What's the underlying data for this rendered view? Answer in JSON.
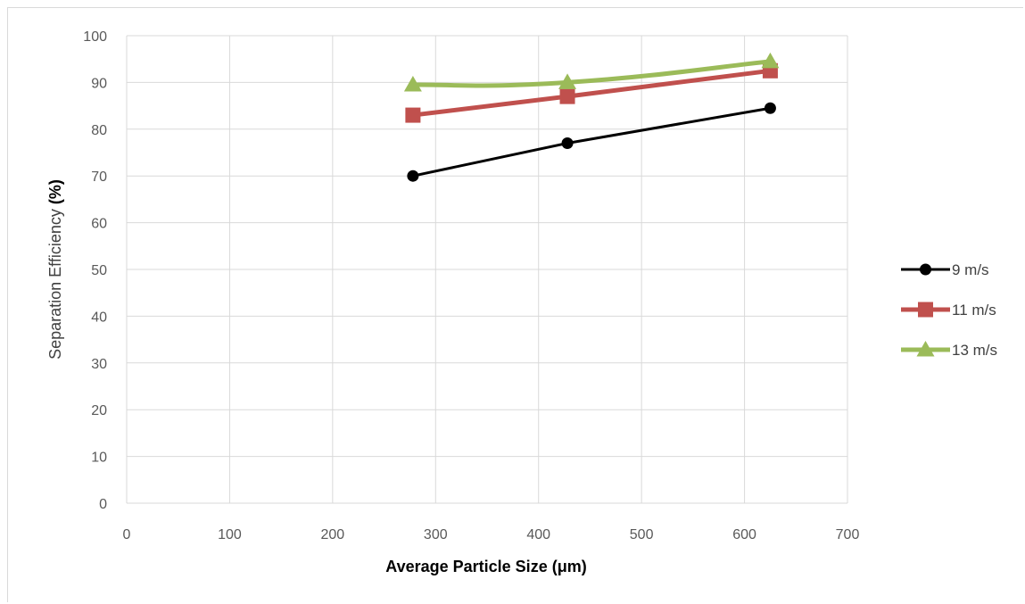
{
  "chart_data": {
    "type": "line",
    "title": "",
    "xlabel": {
      "text": "Average Particle Size ",
      "unit": "(μm)"
    },
    "ylabel": {
      "text": "Separation Efficiency ",
      "unit": "(%)"
    },
    "xlim": [
      0,
      700
    ],
    "ylim": [
      0,
      100
    ],
    "x_ticks": [
      0,
      100,
      200,
      300,
      400,
      500,
      600,
      700
    ],
    "y_ticks": [
      0,
      10,
      20,
      30,
      40,
      50,
      60,
      70,
      80,
      90,
      100
    ],
    "grid": true,
    "legend_position": "right",
    "series": [
      {
        "name": "9 m/s",
        "color": "#000000",
        "marker": "circle",
        "smooth": false,
        "x": [
          278,
          428,
          625
        ],
        "y": [
          70,
          77,
          84.5
        ]
      },
      {
        "name": "11 m/s",
        "color": "#C0504D",
        "marker": "square",
        "smooth": false,
        "x": [
          278,
          428,
          625
        ],
        "y": [
          83,
          87,
          92.5
        ]
      },
      {
        "name": "13 m/s",
        "color": "#9BBB59",
        "marker": "triangle",
        "smooth": true,
        "x": [
          278,
          428,
          625
        ],
        "y": [
          89.5,
          90,
          94.5
        ]
      }
    ]
  }
}
